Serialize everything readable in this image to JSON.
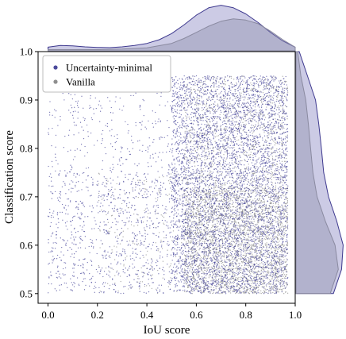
{
  "chart_data": {
    "type": "scatter",
    "xlabel": "IoU score",
    "ylabel": "Classification score",
    "xlim": [
      -0.04,
      1.0
    ],
    "ylim": [
      0.48,
      1.0
    ],
    "xticks": [
      "0.0",
      "0.2",
      "0.4",
      "0.6",
      "0.8",
      "1.0"
    ],
    "yticks": [
      "0.5",
      "0.6",
      "0.7",
      "0.8",
      "0.9",
      "1.0"
    ],
    "legend_position": "top-left",
    "marginal_distributions": "kde",
    "series": [
      {
        "name": "Uncertainty-minimal",
        "color": "#4b4a9c",
        "x_density": [
          [
            0.0,
            0.15
          ],
          [
            0.05,
            0.22
          ],
          [
            0.1,
            0.2
          ],
          [
            0.15,
            0.16
          ],
          [
            0.2,
            0.14
          ],
          [
            0.25,
            0.13
          ],
          [
            0.3,
            0.16
          ],
          [
            0.35,
            0.22
          ],
          [
            0.4,
            0.3
          ],
          [
            0.45,
            0.45
          ],
          [
            0.5,
            0.7
          ],
          [
            0.55,
            1.05
          ],
          [
            0.6,
            1.45
          ],
          [
            0.65,
            1.75
          ],
          [
            0.7,
            1.85
          ],
          [
            0.75,
            1.75
          ],
          [
            0.8,
            1.5
          ],
          [
            0.85,
            1.15
          ],
          [
            0.9,
            0.75
          ],
          [
            0.95,
            0.4
          ],
          [
            1.0,
            0.15
          ]
        ],
        "y_density": [
          [
            0.5,
            1.15
          ],
          [
            0.55,
            1.4
          ],
          [
            0.6,
            1.45
          ],
          [
            0.65,
            1.25
          ],
          [
            0.7,
            1.0
          ],
          [
            0.75,
            0.85
          ],
          [
            0.8,
            0.78
          ],
          [
            0.85,
            0.7
          ],
          [
            0.9,
            0.6
          ],
          [
            0.95,
            0.35
          ],
          [
            1.0,
            0.1
          ]
        ],
        "point_regions": [
          {
            "x": [
              0.0,
              0.5
            ],
            "y": [
              0.5,
              0.75
            ],
            "points": 900
          },
          {
            "x": [
              0.0,
              0.5
            ],
            "y": [
              0.75,
              0.95
            ],
            "points": 320
          },
          {
            "x": [
              0.5,
              0.97
            ],
            "y": [
              0.5,
              0.95
            ],
            "points": 5200
          }
        ]
      },
      {
        "name": "Vanilla",
        "color": "#8e8e8e",
        "x_density": [
          [
            0.0,
            0.05
          ],
          [
            0.1,
            0.05
          ],
          [
            0.2,
            0.05
          ],
          [
            0.3,
            0.07
          ],
          [
            0.4,
            0.12
          ],
          [
            0.5,
            0.3
          ],
          [
            0.55,
            0.5
          ],
          [
            0.6,
            0.75
          ],
          [
            0.65,
            1.0
          ],
          [
            0.7,
            1.2
          ],
          [
            0.75,
            1.3
          ],
          [
            0.8,
            1.25
          ],
          [
            0.85,
            1.1
          ],
          [
            0.9,
            0.8
          ],
          [
            0.95,
            0.45
          ],
          [
            1.0,
            0.15
          ]
        ],
        "y_density": [
          [
            0.5,
            1.05
          ],
          [
            0.55,
            1.3
          ],
          [
            0.6,
            1.2
          ],
          [
            0.65,
            0.9
          ],
          [
            0.7,
            0.65
          ],
          [
            0.75,
            0.52
          ],
          [
            0.8,
            0.45
          ],
          [
            0.85,
            0.38
          ],
          [
            0.9,
            0.3
          ],
          [
            0.95,
            0.15
          ],
          [
            1.0,
            0.05
          ]
        ],
        "point_regions": [
          {
            "x": [
              0.55,
              0.97
            ],
            "y": [
              0.5,
              0.72
            ],
            "points": 2800
          },
          {
            "x": [
              0.55,
              0.97
            ],
            "y": [
              0.72,
              0.95
            ],
            "points": 900
          },
          {
            "x": [
              0.2,
              0.55
            ],
            "y": [
              0.5,
              0.75
            ],
            "points": 200
          }
        ]
      }
    ]
  }
}
